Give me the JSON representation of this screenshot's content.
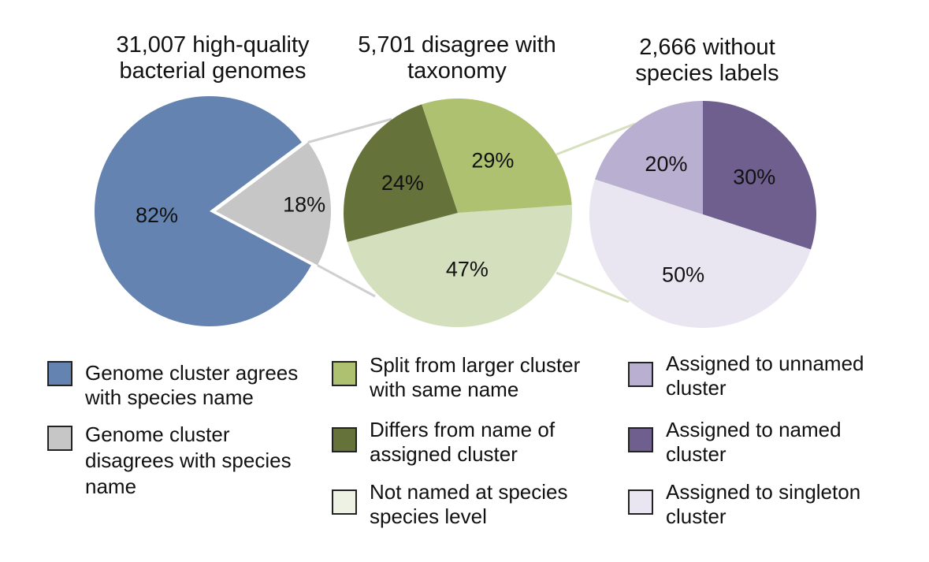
{
  "chart_data": [
    {
      "type": "pie",
      "title": "31,007 high-quality\nbacterial genomes",
      "slices": [
        {
          "label": "Genome cluster agrees with species name",
          "value": 82,
          "display": "82%",
          "color": "#6583b1"
        },
        {
          "label": "Genome cluster disagrees with species name",
          "value": 18,
          "display": "18%",
          "color": "#c6c6c6"
        }
      ]
    },
    {
      "type": "pie",
      "title": "5,701 disagree with\ntaxonomy",
      "slices": [
        {
          "label": "Not named at species species level",
          "value": 47,
          "display": "47%",
          "color": "#d4dfbe"
        },
        {
          "label": "Differs from name of assigned cluster",
          "value": 24,
          "display": "24%",
          "color": "#65733b"
        },
        {
          "label": "Split from larger cluster with same name",
          "value": 29,
          "display": "29%",
          "color": "#aec171"
        }
      ]
    },
    {
      "type": "pie",
      "title": "2,666 without\nspecies labels",
      "slices": [
        {
          "label": "Assigned to named cluster",
          "value": 30,
          "display": "30%",
          "color": "#6f5f8e"
        },
        {
          "label": "Assigned to singleton cluster",
          "value": 50,
          "display": "50%",
          "color": "#e9e6f1"
        },
        {
          "label": "Assigned to unnamed cluster",
          "value": 20,
          "display": "20%",
          "color": "#b9afd0"
        }
      ]
    }
  ],
  "legend": [
    {
      "label": "Genome cluster agrees\nwith species name",
      "color": "#6583b1"
    },
    {
      "label": "Genome cluster\ndisagrees with species\nname",
      "color": "#c6c6c6"
    },
    {
      "label": "Split from larger cluster\nwith same name",
      "color": "#aec171"
    },
    {
      "label": "Differs from name of\nassigned cluster",
      "color": "#65733b"
    },
    {
      "label": "Not named at species\nspecies level",
      "color": "#eef2e5"
    },
    {
      "label": "Assigned to unnamed\ncluster",
      "color": "#b9afd0"
    },
    {
      "label": "Assigned to named\ncluster",
      "color": "#6f5f8e"
    },
    {
      "label": "Assigned to singleton\ncluster",
      "color": "#e9e6f1"
    }
  ],
  "connector_colors": [
    "#cfcfcf",
    "#d6e0bf"
  ]
}
